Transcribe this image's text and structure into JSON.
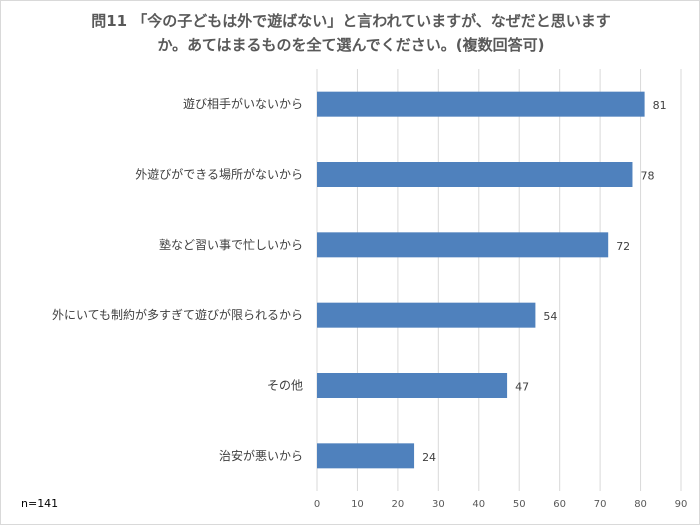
{
  "chart_data": {
    "type": "bar",
    "orientation": "horizontal",
    "title_line1": "問11 「今の子どもは外で遊ばない」と言われていますが、なぜだと思います",
    "title_line2": "か。あてはまるものを全て選んでください。(複数回答可)",
    "categories": [
      "遊び相手がいないから",
      "外遊びができる場所がないから",
      "塾など習い事で忙しいから",
      "外にいても制約が多すぎて遊びが限られるから",
      "その他",
      "治安が悪いから"
    ],
    "values": [
      81,
      78,
      72,
      54,
      47,
      24
    ],
    "xlim": [
      0,
      90
    ],
    "xticks": [
      "0",
      "10",
      "20",
      "30",
      "40",
      "50",
      "60",
      "70",
      "80",
      "90"
    ],
    "grid": true,
    "bar_color": "#4f81bd",
    "grid_color": "#d9d9d9",
    "note": "n=141"
  }
}
